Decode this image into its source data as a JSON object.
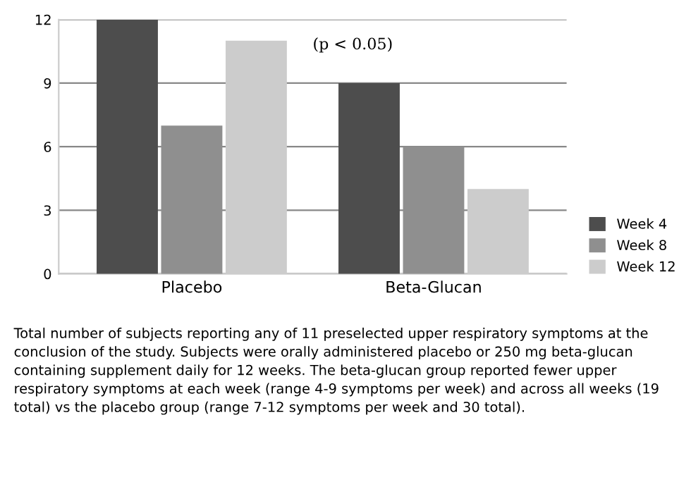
{
  "chart_data": {
    "type": "bar",
    "categories": [
      "Placebo",
      "Beta-Glucan"
    ],
    "series": [
      {
        "name": "Week 4",
        "color": "#4d4d4d",
        "values": [
          12,
          9
        ]
      },
      {
        "name": "Week 8",
        "color": "#8f8f8f",
        "values": [
          7,
          6
        ]
      },
      {
        "name": "Week 12",
        "color": "#cccccc",
        "values": [
          11,
          4
        ]
      }
    ],
    "ylim": [
      0,
      12
    ],
    "yticks": [
      0,
      3,
      6,
      9,
      12
    ],
    "grid": "y",
    "legend": "bottom right",
    "annotations": [
      "(p < 0.05)",
      "Total number of subjects reporting any of 11 preselected upper respiratory symptoms at the conclusion of the study. Subjects were orally administered placebo or 250 mg beta-glucan containing supplement daily for 12 weeks. The beta-glucan group reported fewer upper respiratory symptoms at each week (range 4-9 symptoms per week) and across all weeks (19 total) vs the placebo group (range 7-12 symptoms per week and 30 total)."
    ]
  }
}
